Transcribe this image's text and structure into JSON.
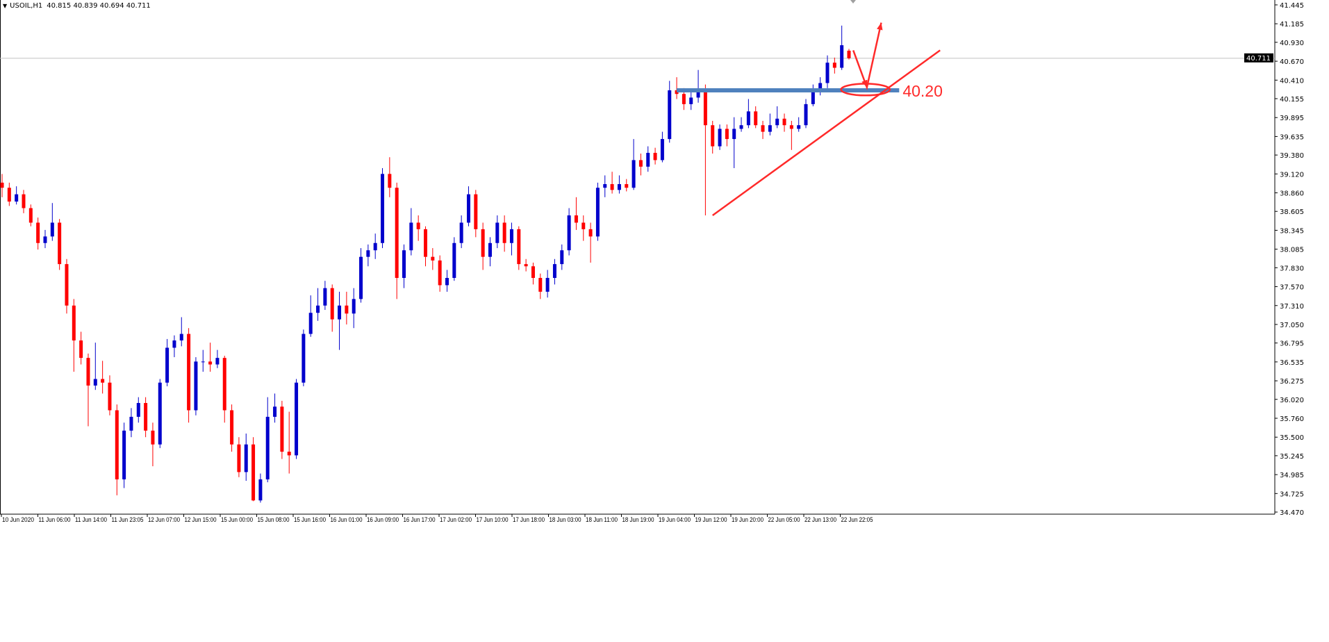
{
  "header": {
    "symbol": "USOIL,H1",
    "ohlc": "40.815 40.839 40.694 40.711"
  },
  "chart_data": {
    "type": "candlestick",
    "symbol": "USOIL",
    "timeframe": "H1",
    "colors": {
      "bull": "#0000cc",
      "bear": "#ff0000",
      "background": "#ffffff",
      "axis": "#000000",
      "price_line": "#c0c0c0",
      "support_band": "#4f81bd",
      "annotation": "#ff2a2a"
    },
    "ylim": [
      34.47,
      41.445
    ],
    "y_ticks": [
      "41.445",
      "41.185",
      "40.930",
      "40.670",
      "40.410",
      "40.155",
      "39.895",
      "39.635",
      "39.380",
      "39.120",
      "38.860",
      "38.605",
      "38.345",
      "38.085",
      "37.830",
      "37.570",
      "37.310",
      "37.050",
      "36.795",
      "36.535",
      "36.275",
      "36.020",
      "35.760",
      "35.500",
      "35.245",
      "34.985",
      "34.725",
      "34.470"
    ],
    "x_ticks": [
      "10 Jun 2020",
      "11 Jun 06:00",
      "11 Jun 14:00",
      "11 Jun 23:05",
      "12 Jun 07:00",
      "12 Jun 15:00",
      "15 Jun 00:00",
      "15 Jun 08:00",
      "15 Jun 16:00",
      "16 Jun 01:00",
      "16 Jun 09:00",
      "16 Jun 17:00",
      "17 Jun 02:00",
      "17 Jun 10:00",
      "17 Jun 18:00",
      "18 Jun 03:00",
      "18 Jun 11:00",
      "18 Jun 19:00",
      "19 Jun 04:00",
      "19 Jun 12:00",
      "19 Jun 20:00",
      "22 Jun 05:00",
      "22 Jun 13:00",
      "22 Jun 22:05"
    ],
    "current_price": "40.711",
    "candles_ohlc": [
      [
        39.0,
        39.12,
        38.8,
        38.93
      ],
      [
        38.93,
        39.0,
        38.68,
        38.74
      ],
      [
        38.74,
        38.95,
        38.7,
        38.84
      ],
      [
        38.84,
        38.9,
        38.58,
        38.65
      ],
      [
        38.65,
        38.7,
        38.4,
        38.45
      ],
      [
        38.45,
        38.52,
        38.08,
        38.17
      ],
      [
        38.17,
        38.35,
        38.1,
        38.26
      ],
      [
        38.26,
        38.72,
        38.2,
        38.45
      ],
      [
        38.45,
        38.5,
        37.8,
        37.88
      ],
      [
        37.88,
        37.95,
        37.2,
        37.31
      ],
      [
        37.31,
        37.4,
        36.4,
        36.83
      ],
      [
        36.83,
        36.95,
        36.5,
        36.59
      ],
      [
        36.59,
        36.65,
        35.65,
        36.21
      ],
      [
        36.21,
        36.8,
        36.15,
        36.3
      ],
      [
        36.3,
        36.55,
        36.1,
        36.25
      ],
      [
        36.25,
        36.35,
        35.8,
        35.87
      ],
      [
        35.87,
        35.95,
        34.7,
        34.92
      ],
      [
        34.92,
        35.7,
        34.8,
        35.59
      ],
      [
        35.59,
        35.9,
        35.5,
        35.78
      ],
      [
        35.78,
        36.05,
        35.7,
        35.97
      ],
      [
        35.97,
        36.05,
        35.5,
        35.59
      ],
      [
        35.59,
        35.7,
        35.1,
        35.4
      ],
      [
        35.4,
        36.3,
        35.35,
        36.25
      ],
      [
        36.25,
        36.85,
        36.2,
        36.73
      ],
      [
        36.73,
        36.9,
        36.6,
        36.83
      ],
      [
        36.83,
        37.15,
        36.75,
        36.92
      ],
      [
        36.92,
        37.0,
        35.7,
        35.87
      ],
      [
        35.87,
        36.6,
        35.8,
        36.54
      ],
      [
        36.54,
        36.7,
        36.4,
        36.54
      ],
      [
        36.54,
        36.8,
        36.4,
        36.5
      ],
      [
        36.5,
        36.7,
        36.45,
        36.59
      ],
      [
        36.59,
        36.62,
        35.7,
        35.87
      ],
      [
        35.87,
        35.95,
        35.3,
        35.4
      ],
      [
        35.4,
        35.5,
        34.95,
        35.02
      ],
      [
        35.02,
        35.55,
        34.9,
        35.4
      ],
      [
        35.4,
        35.5,
        34.62,
        34.63
      ],
      [
        34.63,
        35.0,
        34.6,
        34.92
      ],
      [
        34.92,
        36.05,
        34.88,
        35.78
      ],
      [
        35.78,
        36.1,
        35.7,
        35.92
      ],
      [
        35.92,
        36.0,
        35.2,
        35.3
      ],
      [
        35.3,
        35.85,
        35.0,
        35.25
      ],
      [
        35.25,
        36.3,
        35.2,
        36.25
      ],
      [
        36.25,
        36.98,
        36.2,
        36.92
      ],
      [
        36.92,
        37.45,
        36.88,
        37.21
      ],
      [
        37.21,
        37.55,
        37.1,
        37.31
      ],
      [
        37.31,
        37.65,
        37.25,
        37.55
      ],
      [
        37.55,
        37.6,
        36.95,
        37.12
      ],
      [
        37.12,
        37.5,
        36.7,
        37.31
      ],
      [
        37.31,
        37.5,
        37.05,
        37.2
      ],
      [
        37.2,
        37.55,
        37.0,
        37.4
      ],
      [
        37.4,
        38.1,
        37.35,
        37.98
      ],
      [
        37.98,
        38.15,
        37.85,
        38.07
      ],
      [
        38.07,
        38.3,
        37.95,
        38.17
      ],
      [
        38.17,
        39.2,
        38.1,
        39.12
      ],
      [
        39.12,
        39.35,
        38.8,
        38.93
      ],
      [
        38.93,
        39.0,
        37.4,
        37.69
      ],
      [
        37.69,
        38.15,
        37.55,
        38.07
      ],
      [
        38.07,
        38.65,
        38.0,
        38.45
      ],
      [
        38.45,
        38.55,
        38.2,
        38.36
      ],
      [
        38.36,
        38.4,
        37.85,
        37.98
      ],
      [
        37.98,
        38.1,
        37.8,
        37.93
      ],
      [
        37.93,
        38.0,
        37.5,
        37.59
      ],
      [
        37.59,
        37.8,
        37.5,
        37.69
      ],
      [
        37.69,
        38.25,
        37.65,
        38.17
      ],
      [
        38.17,
        38.55,
        38.1,
        38.45
      ],
      [
        38.45,
        38.95,
        38.4,
        38.84
      ],
      [
        38.84,
        38.9,
        38.25,
        38.36
      ],
      [
        38.36,
        38.45,
        37.8,
        37.98
      ],
      [
        37.98,
        38.25,
        37.85,
        38.17
      ],
      [
        38.17,
        38.55,
        38.1,
        38.45
      ],
      [
        38.45,
        38.55,
        38.05,
        38.17
      ],
      [
        38.17,
        38.45,
        38.0,
        38.36
      ],
      [
        38.36,
        38.4,
        37.8,
        37.88
      ],
      [
        37.88,
        37.95,
        37.78,
        37.85
      ],
      [
        37.85,
        37.9,
        37.6,
        37.69
      ],
      [
        37.69,
        37.75,
        37.4,
        37.5
      ],
      [
        37.5,
        37.8,
        37.42,
        37.69
      ],
      [
        37.69,
        37.95,
        37.6,
        37.88
      ],
      [
        37.88,
        38.15,
        37.8,
        38.07
      ],
      [
        38.07,
        38.65,
        38.0,
        38.55
      ],
      [
        38.55,
        38.8,
        38.35,
        38.45
      ],
      [
        38.45,
        38.55,
        38.2,
        38.36
      ],
      [
        38.36,
        38.45,
        37.9,
        38.26
      ],
      [
        38.26,
        39.0,
        38.2,
        38.93
      ],
      [
        38.93,
        39.1,
        38.8,
        38.98
      ],
      [
        38.98,
        39.15,
        38.85,
        38.9
      ],
      [
        38.9,
        39.1,
        38.85,
        38.98
      ],
      [
        38.98,
        39.05,
        38.88,
        38.93
      ],
      [
        38.93,
        39.6,
        38.9,
        39.31
      ],
      [
        39.31,
        39.4,
        39.1,
        39.22
      ],
      [
        39.22,
        39.5,
        39.15,
        39.41
      ],
      [
        39.41,
        39.48,
        39.25,
        39.31
      ],
      [
        39.31,
        39.7,
        39.28,
        39.6
      ],
      [
        39.6,
        40.4,
        39.55,
        40.27
      ],
      [
        40.27,
        40.45,
        40.15,
        40.22
      ],
      [
        40.22,
        40.3,
        40.0,
        40.08
      ],
      [
        40.08,
        40.25,
        40.0,
        40.17
      ],
      [
        40.17,
        40.55,
        40.1,
        40.27
      ],
      [
        40.27,
        40.35,
        38.55,
        39.79
      ],
      [
        39.79,
        39.85,
        39.4,
        39.5
      ],
      [
        39.5,
        39.8,
        39.45,
        39.74
      ],
      [
        39.74,
        39.8,
        39.5,
        39.6
      ],
      [
        39.6,
        39.9,
        39.2,
        39.74
      ],
      [
        39.74,
        39.9,
        39.7,
        39.79
      ],
      [
        39.79,
        40.15,
        39.75,
        39.98
      ],
      [
        39.98,
        40.05,
        39.75,
        39.79
      ],
      [
        39.79,
        39.85,
        39.6,
        39.7
      ],
      [
        39.7,
        39.95,
        39.65,
        39.79
      ],
      [
        39.79,
        40.05,
        39.75,
        39.88
      ],
      [
        39.88,
        39.95,
        39.7,
        39.79
      ],
      [
        39.79,
        39.85,
        39.45,
        39.74
      ],
      [
        39.74,
        39.9,
        39.7,
        39.79
      ],
      [
        39.79,
        40.15,
        39.75,
        40.08
      ],
      [
        40.08,
        40.35,
        40.05,
        40.27
      ],
      [
        40.27,
        40.45,
        40.2,
        40.37
      ],
      [
        40.37,
        40.75,
        40.3,
        40.65
      ],
      [
        40.65,
        40.72,
        40.5,
        40.58
      ],
      [
        40.58,
        41.16,
        40.55,
        40.89
      ],
      [
        40.815,
        40.839,
        40.694,
        40.711
      ]
    ],
    "annotations": {
      "support_level": {
        "price": 40.27,
        "from_bar": 94,
        "to_bar": 125,
        "label": "40.20"
      },
      "trendline": {
        "from": {
          "bar": 99,
          "price": 38.55
        },
        "to": {
          "bar": 130.7,
          "price": 40.82
        }
      },
      "ellipse": {
        "bar": 120.3,
        "price": 40.28,
        "bar_radius": 3.4,
        "price_radius": 0.08
      },
      "arrow_path": [
        {
          "bar": 118.6,
          "price": 40.82
        },
        {
          "bar": 120.5,
          "price": 40.31
        },
        {
          "bar": 122.5,
          "price": 41.2
        }
      ]
    }
  }
}
